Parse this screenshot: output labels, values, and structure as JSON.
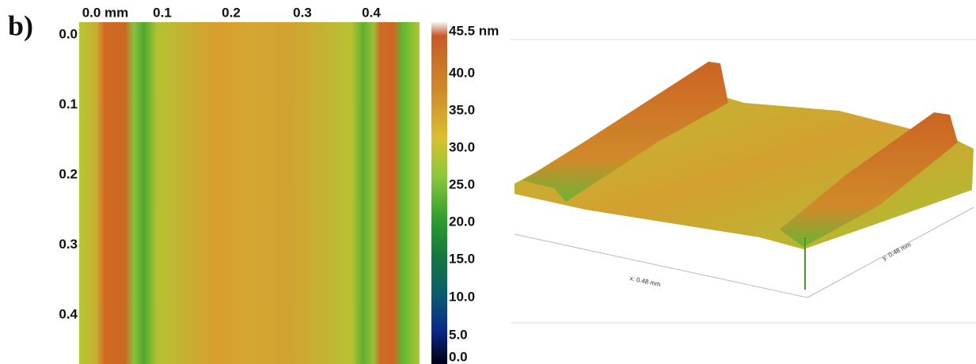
{
  "panel_label": "b)",
  "map": {
    "top_axis_labels": [
      "0.0 mm",
      "0.1",
      "0.2",
      "0.3",
      "0.4"
    ],
    "left_axis_labels": [
      "0.0",
      "0.1",
      "0.2",
      "0.3",
      "0.4"
    ]
  },
  "colorbar": {
    "labels": [
      "45.5 nm",
      "40.0",
      "35.0",
      "30.0",
      "25.0",
      "20.0",
      "15.0",
      "10.0",
      "5.0",
      "0.0"
    ]
  },
  "surface_3d": {
    "x_axis_label": "x: 0.48 mm",
    "y_axis_label": "y: 0.48 mm"
  }
}
